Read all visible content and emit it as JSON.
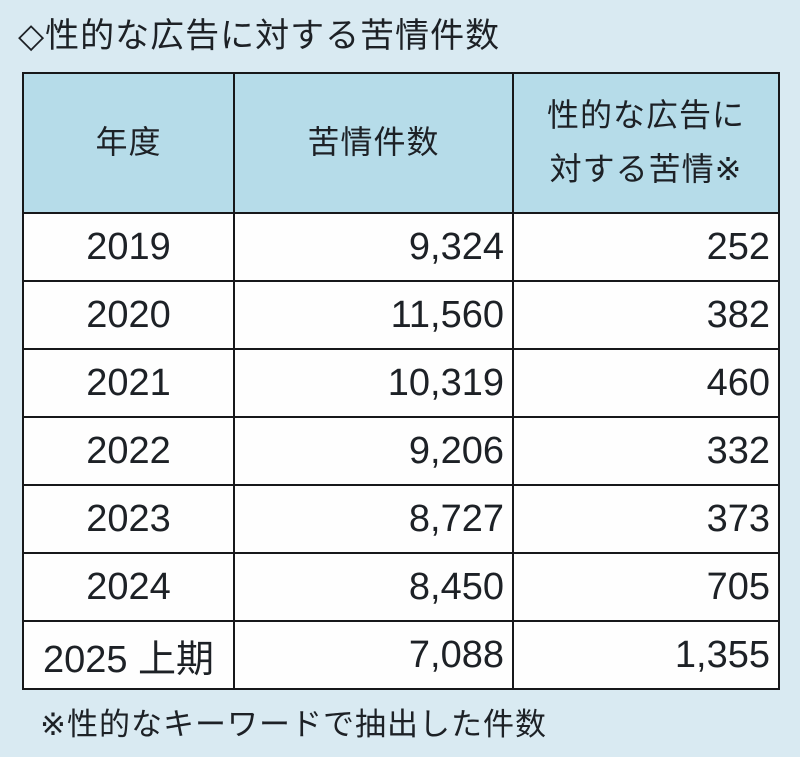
{
  "page": {
    "background": "#d9eaf2",
    "title_bullet": "◇",
    "title": "性的な広告に対する苦情件数",
    "footnote": "※性的なキーワードで抽出した件数"
  },
  "table": {
    "header_bg": "#b6dce9",
    "row_bg": "#fefefe",
    "border_color": "#17181a",
    "columns": [
      "年度",
      "苦情件数",
      "性的な広告に対する苦情※"
    ],
    "column3_lines": [
      "性的な広告に",
      "対する苦情※"
    ],
    "rows": [
      [
        "2019",
        "9,324",
        "252"
      ],
      [
        "2020",
        "11,560",
        "382"
      ],
      [
        "2021",
        "10,319",
        "460"
      ],
      [
        "2022",
        "9,206",
        "332"
      ],
      [
        "2023",
        "8,727",
        "373"
      ],
      [
        "2024",
        "8,450",
        "705"
      ],
      [
        "2025 上期",
        "7,088",
        "1,355"
      ]
    ]
  },
  "chart_data": {
    "type": "table",
    "title": "◇性的な広告に対する苦情件数",
    "columns": [
      "年度",
      "苦情件数",
      "性的な広告に対する苦情※"
    ],
    "rows": [
      [
        "2019",
        9324,
        252
      ],
      [
        "2020",
        11560,
        382
      ],
      [
        "2021",
        10319,
        460
      ],
      [
        "2022",
        9206,
        332
      ],
      [
        "2023",
        8727,
        373
      ],
      [
        "2024",
        8450,
        705
      ],
      [
        "2025 上期",
        7088,
        1355
      ]
    ],
    "footnote": "※性的なキーワードで抽出した件数"
  }
}
